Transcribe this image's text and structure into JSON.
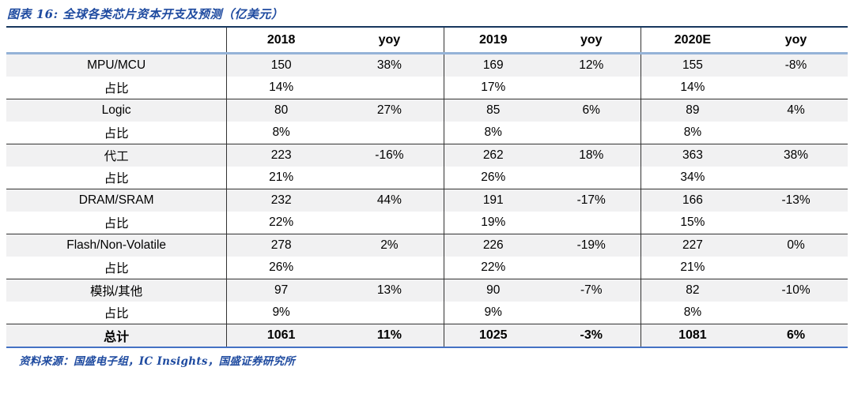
{
  "title": "图表 16:  全球各类芯片资本开支及预测（亿美元）",
  "source": "资料来源：国盛电子组，IC Insights，国盛证券研究所",
  "colors": {
    "title_blue": "#1f4ba0",
    "top_border": "#17375e",
    "header_underline": "#95b3d7",
    "row_separator": "#333333",
    "bottom_border": "#4472c4",
    "shaded_row_bg": "#f1f1f2"
  },
  "chart_data": {
    "type": "table",
    "title": "图表 16:  全球各类芯片资本开支及预测（亿美元）",
    "columns": [
      "",
      "2018",
      "yoy",
      "2019",
      "yoy",
      "2020E",
      "yoy"
    ],
    "rows": [
      {
        "label": "MPU/MCU",
        "cells": [
          "150",
          "38%",
          "169",
          "12%",
          "155",
          "-8%"
        ],
        "shaded": true,
        "bold": false,
        "sep": false
      },
      {
        "label": "占比",
        "cells": [
          "14%",
          "",
          "17%",
          "",
          "14%",
          ""
        ],
        "shaded": false,
        "bold": false,
        "sep": false
      },
      {
        "label": "Logic",
        "cells": [
          "80",
          "27%",
          "85",
          "6%",
          "89",
          "4%"
        ],
        "shaded": true,
        "bold": false,
        "sep": true
      },
      {
        "label": "占比",
        "cells": [
          "8%",
          "",
          "8%",
          "",
          "8%",
          ""
        ],
        "shaded": false,
        "bold": false,
        "sep": false
      },
      {
        "label": "代工",
        "cells": [
          "223",
          "-16%",
          "262",
          "18%",
          "363",
          "38%"
        ],
        "shaded": true,
        "bold": false,
        "sep": true
      },
      {
        "label": "占比",
        "cells": [
          "21%",
          "",
          "26%",
          "",
          "34%",
          ""
        ],
        "shaded": false,
        "bold": false,
        "sep": false
      },
      {
        "label": "DRAM/SRAM",
        "cells": [
          "232",
          "44%",
          "191",
          "-17%",
          "166",
          "-13%"
        ],
        "shaded": true,
        "bold": false,
        "sep": true
      },
      {
        "label": "占比",
        "cells": [
          "22%",
          "",
          "19%",
          "",
          "15%",
          ""
        ],
        "shaded": false,
        "bold": false,
        "sep": false
      },
      {
        "label": "Flash/Non-Volatile",
        "cells": [
          "278",
          "2%",
          "226",
          "-19%",
          "227",
          "0%"
        ],
        "shaded": true,
        "bold": false,
        "sep": true
      },
      {
        "label": "占比",
        "cells": [
          "26%",
          "",
          "22%",
          "",
          "21%",
          ""
        ],
        "shaded": false,
        "bold": false,
        "sep": false
      },
      {
        "label": "模拟/其他",
        "cells": [
          "97",
          "13%",
          "90",
          "-7%",
          "82",
          "-10%"
        ],
        "shaded": true,
        "bold": false,
        "sep": true
      },
      {
        "label": "占比",
        "cells": [
          "9%",
          "",
          "9%",
          "",
          "8%",
          ""
        ],
        "shaded": false,
        "bold": false,
        "sep": false
      },
      {
        "label": "总计",
        "cells": [
          "1061",
          "11%",
          "1025",
          "-3%",
          "1081",
          "6%"
        ],
        "shaded": true,
        "bold": true,
        "sep": true
      }
    ],
    "source": "资料来源：国盛电子组，IC Insights，国盛证券研究所",
    "layout": {
      "column_widths_pct": [
        26.2,
        12.9,
        12.9,
        11.7,
        11.7,
        12.3,
        12.3
      ],
      "vertical_separators_after_columns": [
        0,
        2,
        4
      ],
      "grid": "horizontal group separators, shaded category rows"
    }
  }
}
